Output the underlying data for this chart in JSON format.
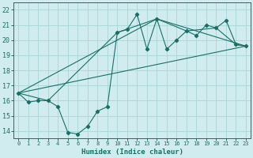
{
  "bg_color": "#d0ecee",
  "grid_color": "#aed8dc",
  "line_color": "#1a6e66",
  "xlabel": "Humidex (Indice chaleur)",
  "xlim": [
    -0.5,
    23.5
  ],
  "ylim": [
    13.5,
    22.5
  ],
  "xticks": [
    0,
    1,
    2,
    3,
    4,
    5,
    6,
    7,
    8,
    9,
    10,
    11,
    12,
    13,
    14,
    15,
    16,
    17,
    18,
    19,
    20,
    21,
    22,
    23
  ],
  "yticks": [
    14,
    15,
    16,
    17,
    18,
    19,
    20,
    21,
    22
  ],
  "series1_x": [
    0,
    1,
    2,
    3,
    4,
    5,
    6,
    7,
    8,
    9,
    10,
    11,
    12,
    13,
    14,
    15,
    16,
    17,
    18,
    19,
    20,
    21,
    22,
    23
  ],
  "series1_y": [
    16.5,
    15.9,
    16.0,
    16.0,
    15.6,
    13.9,
    13.8,
    14.3,
    15.3,
    15.6,
    20.5,
    20.7,
    21.7,
    19.4,
    21.4,
    19.4,
    20.0,
    20.6,
    20.3,
    21.0,
    20.8,
    21.3,
    19.7,
    19.6
  ],
  "series2_x": [
    0,
    3,
    10,
    14,
    17,
    20,
    22,
    23
  ],
  "series2_y": [
    16.5,
    16.0,
    20.5,
    21.4,
    20.6,
    20.8,
    19.7,
    19.6
  ],
  "series3_x": [
    0,
    23
  ],
  "series3_y": [
    16.5,
    19.6
  ],
  "series4_x": [
    0,
    14,
    23
  ],
  "series4_y": [
    16.5,
    21.4,
    19.6
  ]
}
